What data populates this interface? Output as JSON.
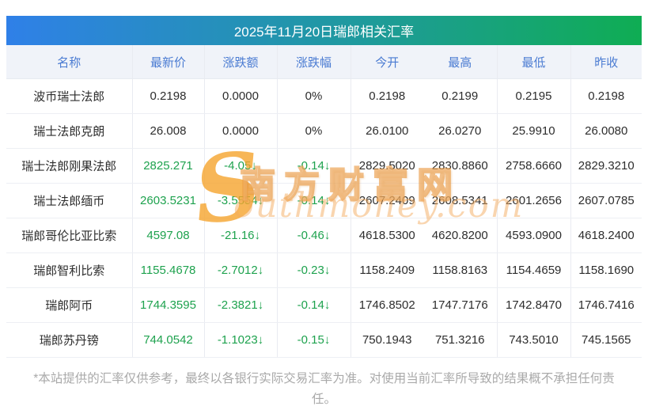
{
  "title": "2025年11月20日瑞郎相关汇率",
  "table": {
    "columns": [
      "名称",
      "最新价",
      "涨跌额",
      "涨跌幅",
      "今开",
      "最高",
      "最低",
      "昨收"
    ],
    "rows": [
      {
        "name": "波币瑞士法郎",
        "latest": "0.2198",
        "change": "0.0000",
        "change_pct": "0%",
        "open": "0.2198",
        "high": "0.2199",
        "low": "0.2195",
        "prev_close": "0.2198",
        "trend": "flat"
      },
      {
        "name": "瑞士法郎克朗",
        "latest": "26.008",
        "change": "0.0000",
        "change_pct": "0%",
        "open": "26.0100",
        "high": "26.0270",
        "low": "25.9910",
        "prev_close": "26.0080",
        "trend": "flat"
      },
      {
        "name": "瑞士法郎刚果法郎",
        "latest": "2825.271",
        "change": "-4.05↓",
        "change_pct": "-0.14↓",
        "open": "2829.5020",
        "high": "2830.8860",
        "low": "2758.6660",
        "prev_close": "2829.3210",
        "trend": "down"
      },
      {
        "name": "瑞士法郎缅币",
        "latest": "2603.5231",
        "change": "-3.5554↓",
        "change_pct": "-0.14↓",
        "open": "2607.2409",
        "high": "2608.5341",
        "low": "2601.2656",
        "prev_close": "2607.0785",
        "trend": "down"
      },
      {
        "name": "瑞郎哥伦比亚比索",
        "latest": "4597.08",
        "change": "-21.16↓",
        "change_pct": "-0.46↓",
        "open": "4618.5300",
        "high": "4620.8200",
        "low": "4593.0900",
        "prev_close": "4618.2400",
        "trend": "down"
      },
      {
        "name": "瑞郎智利比索",
        "latest": "1155.4678",
        "change": "-2.7012↓",
        "change_pct": "-0.23↓",
        "open": "1158.2409",
        "high": "1158.8163",
        "low": "1154.4659",
        "prev_close": "1158.1690",
        "trend": "down"
      },
      {
        "name": "瑞郎阿币",
        "latest": "1744.3595",
        "change": "-2.3821↓",
        "change_pct": "-0.14↓",
        "open": "1746.8502",
        "high": "1747.7176",
        "low": "1742.8470",
        "prev_close": "1746.7416",
        "trend": "down"
      },
      {
        "name": "瑞郎苏丹镑",
        "latest": "744.0542",
        "change": "-1.1023↓",
        "change_pct": "-0.15↓",
        "open": "750.1943",
        "high": "751.3216",
        "low": "743.5010",
        "prev_close": "745.1565",
        "trend": "down"
      }
    ]
  },
  "watermark": {
    "s": "S",
    "cn": "南方财富网",
    "en": "outhmoney.com"
  },
  "footer": {
    "line1": "*本站提供的汇率仅供参考，最终以各银行实际交易汇率为准。对使用当前汇率所导致的结果概不承担任何责",
    "line2": "任。"
  },
  "colors": {
    "title_gradient_start": "#2f80e8",
    "title_gradient_end": "#0fad53",
    "header_bg": "#f0f3f9",
    "header_text": "#4a7bd2",
    "value_down_green": "#1ea24e",
    "watermark_orange": "#f6a52e",
    "footer_gray": "#a9a9a9"
  }
}
